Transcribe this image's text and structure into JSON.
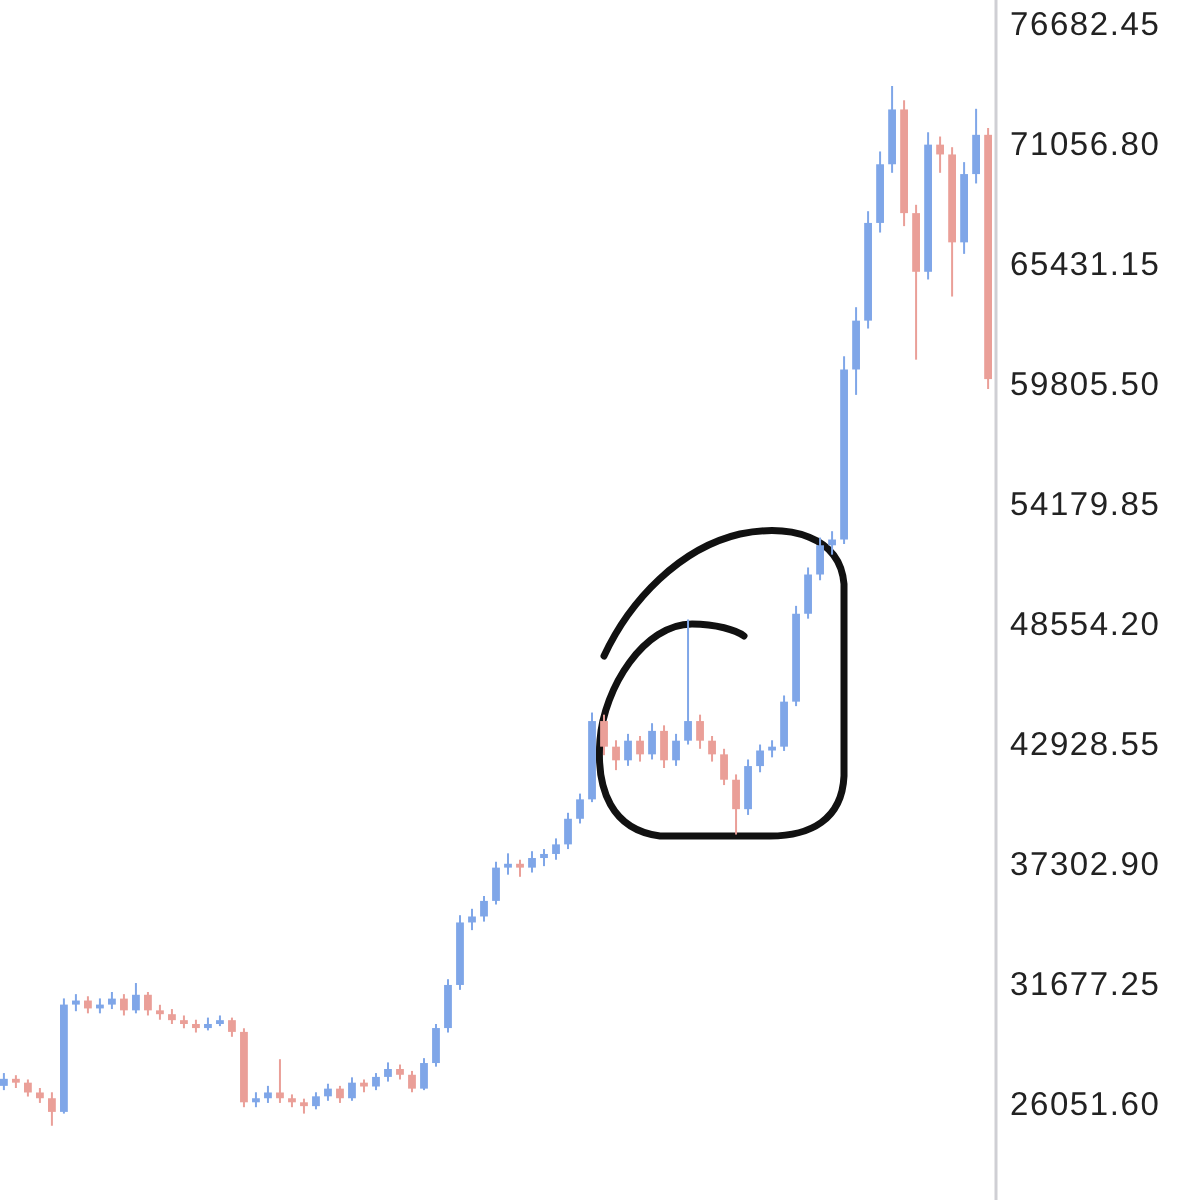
{
  "chart_data": {
    "type": "candlestick",
    "categories": [
      null,
      null,
      null,
      null,
      null,
      null,
      null,
      null,
      null,
      null,
      null,
      null,
      null,
      null,
      null,
      null,
      null,
      null,
      null,
      null,
      null,
      null,
      null,
      null,
      null,
      null,
      null,
      null,
      null,
      null,
      null,
      null,
      null,
      null,
      null,
      null,
      null,
      null,
      null,
      null,
      null,
      null,
      null,
      null,
      null,
      null,
      null,
      null,
      null,
      null,
      null,
      null,
      null,
      null,
      null,
      null,
      null,
      null,
      null,
      null,
      null,
      null,
      null,
      null,
      null,
      null,
      null,
      null,
      null,
      null,
      null,
      null,
      null,
      null,
      null,
      null,
      null,
      null,
      null,
      null,
      null,
      null,
      null
    ],
    "ohlc": [
      [
        27000,
        27600,
        26800,
        27330
      ],
      [
        27330,
        27500,
        26900,
        27150
      ],
      [
        27150,
        27300,
        26500,
        26690
      ],
      [
        26690,
        26900,
        26200,
        26420
      ],
      [
        26420,
        26700,
        25130,
        25780
      ],
      [
        25780,
        31100,
        25700,
        30810
      ],
      [
        30810,
        31300,
        30500,
        31000
      ],
      [
        31000,
        31200,
        30400,
        30630
      ],
      [
        30630,
        31100,
        30400,
        30810
      ],
      [
        30810,
        31400,
        30600,
        31090
      ],
      [
        31090,
        31300,
        30300,
        30540
      ],
      [
        30540,
        31820,
        30400,
        31270
      ],
      [
        31270,
        31400,
        30300,
        30540
      ],
      [
        30540,
        30800,
        30100,
        30360
      ],
      [
        30360,
        30600,
        29900,
        30080
      ],
      [
        30080,
        30300,
        29700,
        29900
      ],
      [
        29900,
        30100,
        29500,
        29710
      ],
      [
        29710,
        30200,
        29600,
        29900
      ],
      [
        29900,
        30300,
        29800,
        30080
      ],
      [
        30080,
        30200,
        29300,
        29530
      ],
      [
        29530,
        29700,
        26000,
        26230
      ],
      [
        26230,
        26700,
        26000,
        26420
      ],
      [
        26420,
        27000,
        26200,
        26690
      ],
      [
        26690,
        28250,
        26200,
        26420
      ],
      [
        26420,
        26600,
        26000,
        26230
      ],
      [
        26230,
        26400,
        25700,
        26050
      ],
      [
        26050,
        26700,
        25900,
        26510
      ],
      [
        26510,
        27100,
        26300,
        26870
      ],
      [
        26870,
        27000,
        26200,
        26420
      ],
      [
        26420,
        27400,
        26300,
        27150
      ],
      [
        27150,
        27300,
        26700,
        26970
      ],
      [
        26970,
        27600,
        26800,
        27420
      ],
      [
        27420,
        28100,
        27200,
        27790
      ],
      [
        27790,
        28000,
        27300,
        27520
      ],
      [
        27520,
        27700,
        26700,
        26870
      ],
      [
        26870,
        28300,
        26800,
        28070
      ],
      [
        28070,
        29900,
        27900,
        29710
      ],
      [
        29710,
        32000,
        29500,
        31730
      ],
      [
        31730,
        35000,
        31500,
        34660
      ],
      [
        34660,
        35300,
        34300,
        34940
      ],
      [
        34940,
        35900,
        34700,
        35670
      ],
      [
        35670,
        37500,
        35500,
        37230
      ],
      [
        37230,
        37900,
        36900,
        37410
      ],
      [
        37410,
        37600,
        36800,
        37230
      ],
      [
        37230,
        38000,
        37000,
        37680
      ],
      [
        37680,
        38100,
        37300,
        37870
      ],
      [
        37870,
        38600,
        37600,
        38320
      ],
      [
        38320,
        39800,
        38100,
        39520
      ],
      [
        39520,
        40700,
        39300,
        40430
      ],
      [
        40430,
        44500,
        40300,
        44100
      ],
      [
        44100,
        44400,
        42500,
        42900
      ],
      [
        42900,
        43200,
        41800,
        42260
      ],
      [
        42260,
        43500,
        42000,
        43180
      ],
      [
        43180,
        43400,
        42200,
        42540
      ],
      [
        42540,
        44000,
        42300,
        43640
      ],
      [
        43640,
        43900,
        41900,
        42260
      ],
      [
        42260,
        43500,
        42000,
        43180
      ],
      [
        43180,
        48860,
        43000,
        44100
      ],
      [
        44100,
        44400,
        42800,
        43180
      ],
      [
        43180,
        43400,
        42200,
        42540
      ],
      [
        42540,
        42800,
        41100,
        41350
      ],
      [
        41350,
        41600,
        38780,
        39970
      ],
      [
        39970,
        42300,
        39700,
        41990
      ],
      [
        41990,
        43000,
        41700,
        42720
      ],
      [
        42720,
        43200,
        42400,
        42900
      ],
      [
        42900,
        45300,
        42700,
        45010
      ],
      [
        45010,
        49500,
        44800,
        49130
      ],
      [
        49130,
        51300,
        48900,
        50970
      ],
      [
        50970,
        52700,
        50700,
        52340
      ],
      [
        52340,
        53000,
        51900,
        52610
      ],
      [
        52610,
        61200,
        52400,
        60580
      ],
      [
        60580,
        63500,
        59390,
        62870
      ],
      [
        62870,
        68000,
        62500,
        67450
      ],
      [
        67450,
        70800,
        67000,
        70200
      ],
      [
        70200,
        73870,
        69800,
        72770
      ],
      [
        72770,
        73200,
        67300,
        67910
      ],
      [
        67910,
        68300,
        61040,
        65160
      ],
      [
        65160,
        71700,
        64800,
        71120
      ],
      [
        71120,
        71500,
        69800,
        70660
      ],
      [
        70660,
        71000,
        64000,
        66540
      ],
      [
        66540,
        70300,
        66000,
        69740
      ],
      [
        69740,
        72800,
        69300,
        71580
      ],
      [
        71580,
        71900,
        59670,
        60130
      ]
    ],
    "colors": [
      "#7fa6e8",
      "#ea9f98",
      "#ea9f98",
      "#ea9f98",
      "#ea9f98",
      "#7fa6e8",
      "#7fa6e8",
      "#ea9f98",
      "#7fa6e8",
      "#7fa6e8",
      "#ea9f98",
      "#7fa6e8",
      "#ea9f98",
      "#ea9f98",
      "#ea9f98",
      "#ea9f98",
      "#ea9f98",
      "#7fa6e8",
      "#7fa6e8",
      "#ea9f98",
      "#ea9f98",
      "#7fa6e8",
      "#7fa6e8",
      "#ea9f98",
      "#ea9f98",
      "#ea9f98",
      "#7fa6e8",
      "#7fa6e8",
      "#ea9f98",
      "#7fa6e8",
      "#ea9f98",
      "#7fa6e8",
      "#7fa6e8",
      "#ea9f98",
      "#ea9f98",
      "#7fa6e8",
      "#7fa6e8",
      "#7fa6e8",
      "#7fa6e8",
      "#7fa6e8",
      "#7fa6e8",
      "#7fa6e8",
      "#7fa6e8",
      "#ea9f98",
      "#7fa6e8",
      "#7fa6e8",
      "#7fa6e8",
      "#7fa6e8",
      "#7fa6e8",
      "#7fa6e8",
      "#ea9f98",
      "#ea9f98",
      "#7fa6e8",
      "#ea9f98",
      "#7fa6e8",
      "#ea9f98",
      "#7fa6e8",
      "#7fa6e8",
      "#ea9f98",
      "#ea9f98",
      "#ea9f98",
      "#ea9f98",
      "#7fa6e8",
      "#7fa6e8",
      "#7fa6e8",
      "#7fa6e8",
      "#7fa6e8",
      "#7fa6e8",
      "#7fa6e8",
      "#7fa6e8",
      "#7fa6e8",
      "#7fa6e8",
      "#7fa6e8",
      "#7fa6e8",
      "#7fa6e8",
      "#ea9f98",
      "#ea9f98",
      "#7fa6e8",
      "#ea9f98",
      "#ea9f98",
      "#7fa6e8",
      "#7fa6e8",
      "#ea9f98"
    ],
    "ylim": [
      21650,
      77900
    ],
    "yticks": [
      {
        "value": 26051.6,
        "label": "26051.60"
      },
      {
        "value": 31677.25,
        "label": "31677.25"
      },
      {
        "value": 37302.9,
        "label": "37302.90"
      },
      {
        "value": 42928.55,
        "label": "42928.55"
      },
      {
        "value": 48554.2,
        "label": "48554.20"
      },
      {
        "value": 54179.85,
        "label": "54179.85"
      },
      {
        "value": 59805.5,
        "label": "59805.50"
      },
      {
        "value": 65431.15,
        "label": "65431.15"
      },
      {
        "value": 71056.8,
        "label": "71056.80"
      },
      {
        "value": 76682.45,
        "label": "76682.45"
      }
    ]
  }
}
